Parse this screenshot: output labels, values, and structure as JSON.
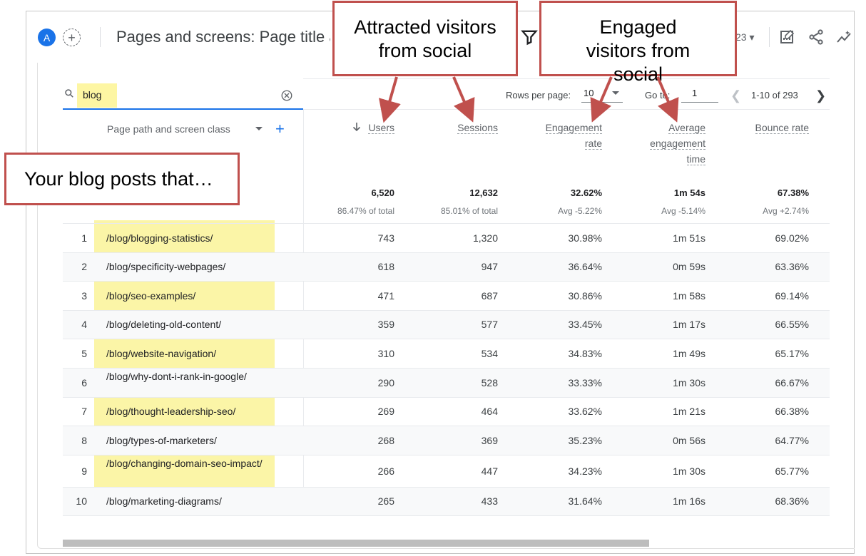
{
  "header": {
    "avatar_letter": "A",
    "add_symbol": "+",
    "title": "Pages and screens: Page title and screen class",
    "date_fragment": "23",
    "icons": [
      "filter-icon",
      "customize-report-icon",
      "share-icon",
      "insights-icon"
    ]
  },
  "search": {
    "value": "blog"
  },
  "pagination": {
    "rows_per_page_label": "Rows per page:",
    "rows_per_page_value": "10",
    "goto_label": "Go to:",
    "goto_value": "1",
    "range_text": "1-10 of 293"
  },
  "table": {
    "dimension_header": "Page path and screen class",
    "columns": [
      {
        "label_lines": [
          "Users"
        ],
        "total": "6,520",
        "total_sub": "86.47% of total",
        "sorted": true
      },
      {
        "label_lines": [
          "Sessions"
        ],
        "total": "12,632",
        "total_sub": "85.01% of total"
      },
      {
        "label_lines": [
          "Engagement",
          "rate"
        ],
        "total": "32.62%",
        "total_sub": "Avg -5.22%"
      },
      {
        "label_lines": [
          "Average",
          "engagement",
          "time"
        ],
        "total": "1m 54s",
        "total_sub": "Avg -5.14%"
      },
      {
        "label_lines": [
          "Bounce rate"
        ],
        "total": "67.38%",
        "total_sub": "Avg +2.74%"
      }
    ],
    "rows": [
      {
        "n": "1",
        "path": "/blog/blogging-statistics/",
        "users": "743",
        "sessions": "1,320",
        "eng_rate": "30.98%",
        "avg_time": "1m 51s",
        "bounce": "69.02%"
      },
      {
        "n": "2",
        "path": "/blog/specificity-webpages/",
        "users": "618",
        "sessions": "947",
        "eng_rate": "36.64%",
        "avg_time": "0m 59s",
        "bounce": "63.36%"
      },
      {
        "n": "3",
        "path": "/blog/seo-examples/",
        "users": "471",
        "sessions": "687",
        "eng_rate": "30.86%",
        "avg_time": "1m 58s",
        "bounce": "69.14%"
      },
      {
        "n": "4",
        "path": "/blog/deleting-old-content/",
        "users": "359",
        "sessions": "577",
        "eng_rate": "33.45%",
        "avg_time": "1m 17s",
        "bounce": "66.55%"
      },
      {
        "n": "5",
        "path": "/blog/website-navigation/",
        "users": "310",
        "sessions": "534",
        "eng_rate": "34.83%",
        "avg_time": "1m 49s",
        "bounce": "65.17%"
      },
      {
        "n": "6",
        "path": "/blog/why-dont-i-rank-in-google/",
        "users": "290",
        "sessions": "528",
        "eng_rate": "33.33%",
        "avg_time": "1m 30s",
        "bounce": "66.67%"
      },
      {
        "n": "7",
        "path": "/blog/thought-leadership-seo/",
        "users": "269",
        "sessions": "464",
        "eng_rate": "33.62%",
        "avg_time": "1m 21s",
        "bounce": "66.38%"
      },
      {
        "n": "8",
        "path": "/blog/types-of-marketers/",
        "users": "268",
        "sessions": "369",
        "eng_rate": "35.23%",
        "avg_time": "0m 56s",
        "bounce": "64.77%"
      },
      {
        "n": "9",
        "path": "/blog/changing-domain-seo-impact/",
        "users": "266",
        "sessions": "447",
        "eng_rate": "34.23%",
        "avg_time": "1m 30s",
        "bounce": "65.77%"
      },
      {
        "n": "10",
        "path": "/blog/marketing-diagrams/",
        "users": "265",
        "sessions": "433",
        "eng_rate": "31.64%",
        "avg_time": "1m 16s",
        "bounce": "68.36%"
      }
    ]
  },
  "callouts": {
    "attracted": "Attracted visitors from social",
    "engaged": "Engaged visitors from social",
    "blog_posts": "Your blog posts that…"
  },
  "colors": {
    "accent": "#1a73e8",
    "highlight": "#fbf4a2",
    "callout_border": "#c0504d"
  }
}
